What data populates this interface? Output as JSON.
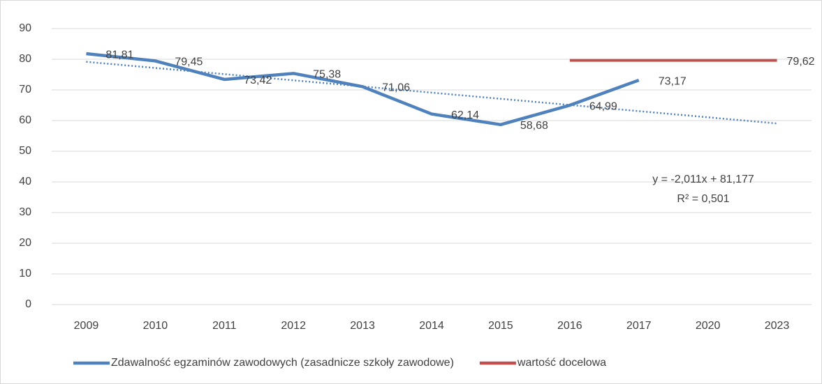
{
  "chart_data": {
    "type": "line",
    "categories": [
      "2009",
      "2010",
      "2011",
      "2012",
      "2013",
      "2014",
      "2015",
      "2016",
      "2017",
      "2020",
      "2023"
    ],
    "series": [
      {
        "name": "Zdawalność egzaminów zawodowych (zasadnicze szkoły zawodowe)",
        "color": "#4f81bd",
        "values": [
          81.81,
          79.45,
          73.42,
          75.38,
          71.06,
          62.14,
          58.68,
          64.99,
          73.17,
          null,
          null
        ],
        "value_labels": [
          "81,81",
          "79,45",
          "73,42",
          "75,38",
          "71,06",
          "62,14",
          "58,68",
          "64,99",
          "73,17",
          null,
          null
        ]
      },
      {
        "name": "wartość docelowa",
        "color": "#c0504d",
        "values": [
          null,
          null,
          null,
          null,
          null,
          null,
          null,
          79.62,
          79.62,
          79.62,
          79.62
        ],
        "value_labels": [
          null,
          null,
          null,
          null,
          null,
          null,
          null,
          null,
          null,
          null,
          "79,62"
        ]
      }
    ],
    "trendline": {
      "slope": -2.011,
      "intercept": 81.177,
      "label": "y = -2,011x + 81,177",
      "r2_label": "R² = 0,501",
      "color": "#4f81bd"
    },
    "ylim": [
      0,
      90
    ],
    "yticks": [
      0,
      10,
      20,
      30,
      40,
      50,
      60,
      70,
      80,
      90
    ],
    "grid": true,
    "legend": "bottom"
  }
}
